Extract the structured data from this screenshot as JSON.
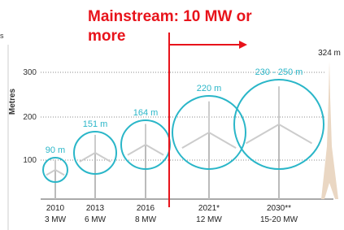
{
  "annotation": {
    "line1": "Mainstream: 10 MW or",
    "line2": "more"
  },
  "cut_text": "s",
  "axis": {
    "label": "Metres",
    "ticks": [
      "300",
      "200",
      "100"
    ]
  },
  "turbines": [
    {
      "height": "90 m",
      "year": "2010",
      "capacity": "3 MW"
    },
    {
      "height": "151 m",
      "year": "2013",
      "capacity": "6 MW"
    },
    {
      "height": "164 m",
      "year": "2016",
      "capacity": "8 MW"
    },
    {
      "height": "220 m",
      "year": "2021*",
      "capacity": "12 MW"
    },
    {
      "height": "230 - 250 m",
      "year": "2030**",
      "capacity": "15-20 MW"
    }
  ],
  "eiffel": {
    "height": "324 m"
  }
}
